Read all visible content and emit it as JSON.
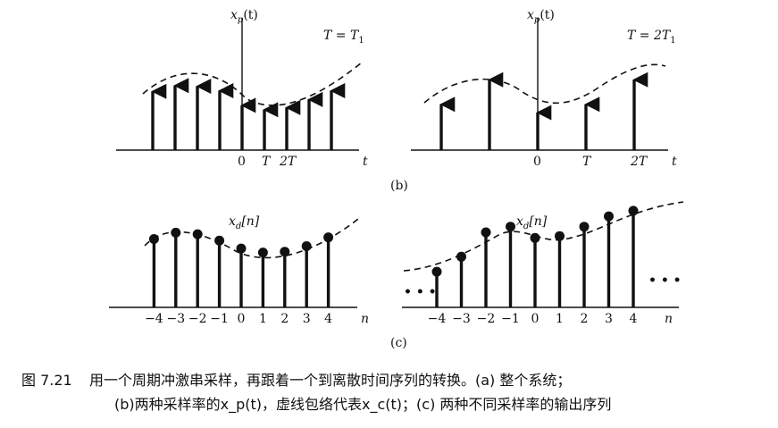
{
  "panel_b": {
    "label": "(b)",
    "left": {
      "title_prefix": "x",
      "title_sub": "p",
      "title_suffix": "(t)",
      "rate": "T = T",
      "rate_sub": "1",
      "ticks": [
        "0",
        "T",
        "2T"
      ],
      "axis_label": "t"
    },
    "right": {
      "title_prefix": "x",
      "title_sub": "p",
      "title_suffix": "(t)",
      "rate": "T = 2T",
      "rate_sub": "1",
      "ticks": [
        "0",
        "T",
        "2T"
      ],
      "axis_label": "t"
    }
  },
  "panel_c": {
    "label": "(c)",
    "left": {
      "title_prefix": "x",
      "title_sub": "d",
      "title_suffix": "[n]",
      "ticks": [
        "−4",
        "−3",
        "−2",
        "−1",
        "0",
        "1",
        "2",
        "3",
        "4"
      ],
      "axis_label": "n"
    },
    "right": {
      "title_prefix": "x",
      "title_sub": "d",
      "title_suffix": "[n]",
      "ticks": [
        "−4",
        "−3",
        "−2",
        "−1",
        "0",
        "1",
        "2",
        "3",
        "4"
      ],
      "axis_label": "n",
      "ellipsis_left": "• • •",
      "ellipsis_right": "• • •"
    }
  },
  "caption": {
    "figure_number": "图 7.21",
    "line1": "用一个周期冲激串采样，再跟着一个到离散时间序列的转换。(a) 整个系统；",
    "line2": "(b)两种采样率的x_p(t)，虚线包络代表x_c(t)；(c) 两种不同采样率的输出序列"
  },
  "chart_data": [
    {
      "type": "stem",
      "title": "x_p(t)",
      "subtitle": "T = T_1",
      "xlabel": "t",
      "x": [
        -4,
        -3,
        -2,
        -1,
        0,
        1,
        2,
        3,
        4
      ],
      "values": [
        0.85,
        0.93,
        0.92,
        0.86,
        0.66,
        0.6,
        0.63,
        0.74,
        0.86
      ],
      "x_ticks": [
        "0",
        "T",
        "2T"
      ]
    },
    {
      "type": "stem",
      "title": "x_p(t)",
      "subtitle": "T = 2T_1",
      "xlabel": "t",
      "x": [
        -2,
        -1,
        0,
        1,
        2
      ],
      "values": [
        0.6,
        0.9,
        0.5,
        0.6,
        0.9
      ],
      "x_ticks": [
        "0",
        "T",
        "2T"
      ]
    },
    {
      "type": "stem",
      "title": "x_d[n]",
      "xlabel": "n",
      "x": [
        -4,
        -3,
        -2,
        -1,
        0,
        1,
        2,
        3,
        4
      ],
      "values": [
        0.86,
        0.94,
        0.92,
        0.84,
        0.74,
        0.69,
        0.7,
        0.77,
        0.88
      ]
    },
    {
      "type": "stem",
      "title": "x_d[n]",
      "xlabel": "n",
      "x": [
        -4,
        -3,
        -2,
        -1,
        0,
        1,
        2,
        3,
        4
      ],
      "values": [
        0.38,
        0.54,
        0.8,
        0.86,
        0.74,
        0.76,
        0.86,
        0.97,
        1.03
      ]
    }
  ]
}
